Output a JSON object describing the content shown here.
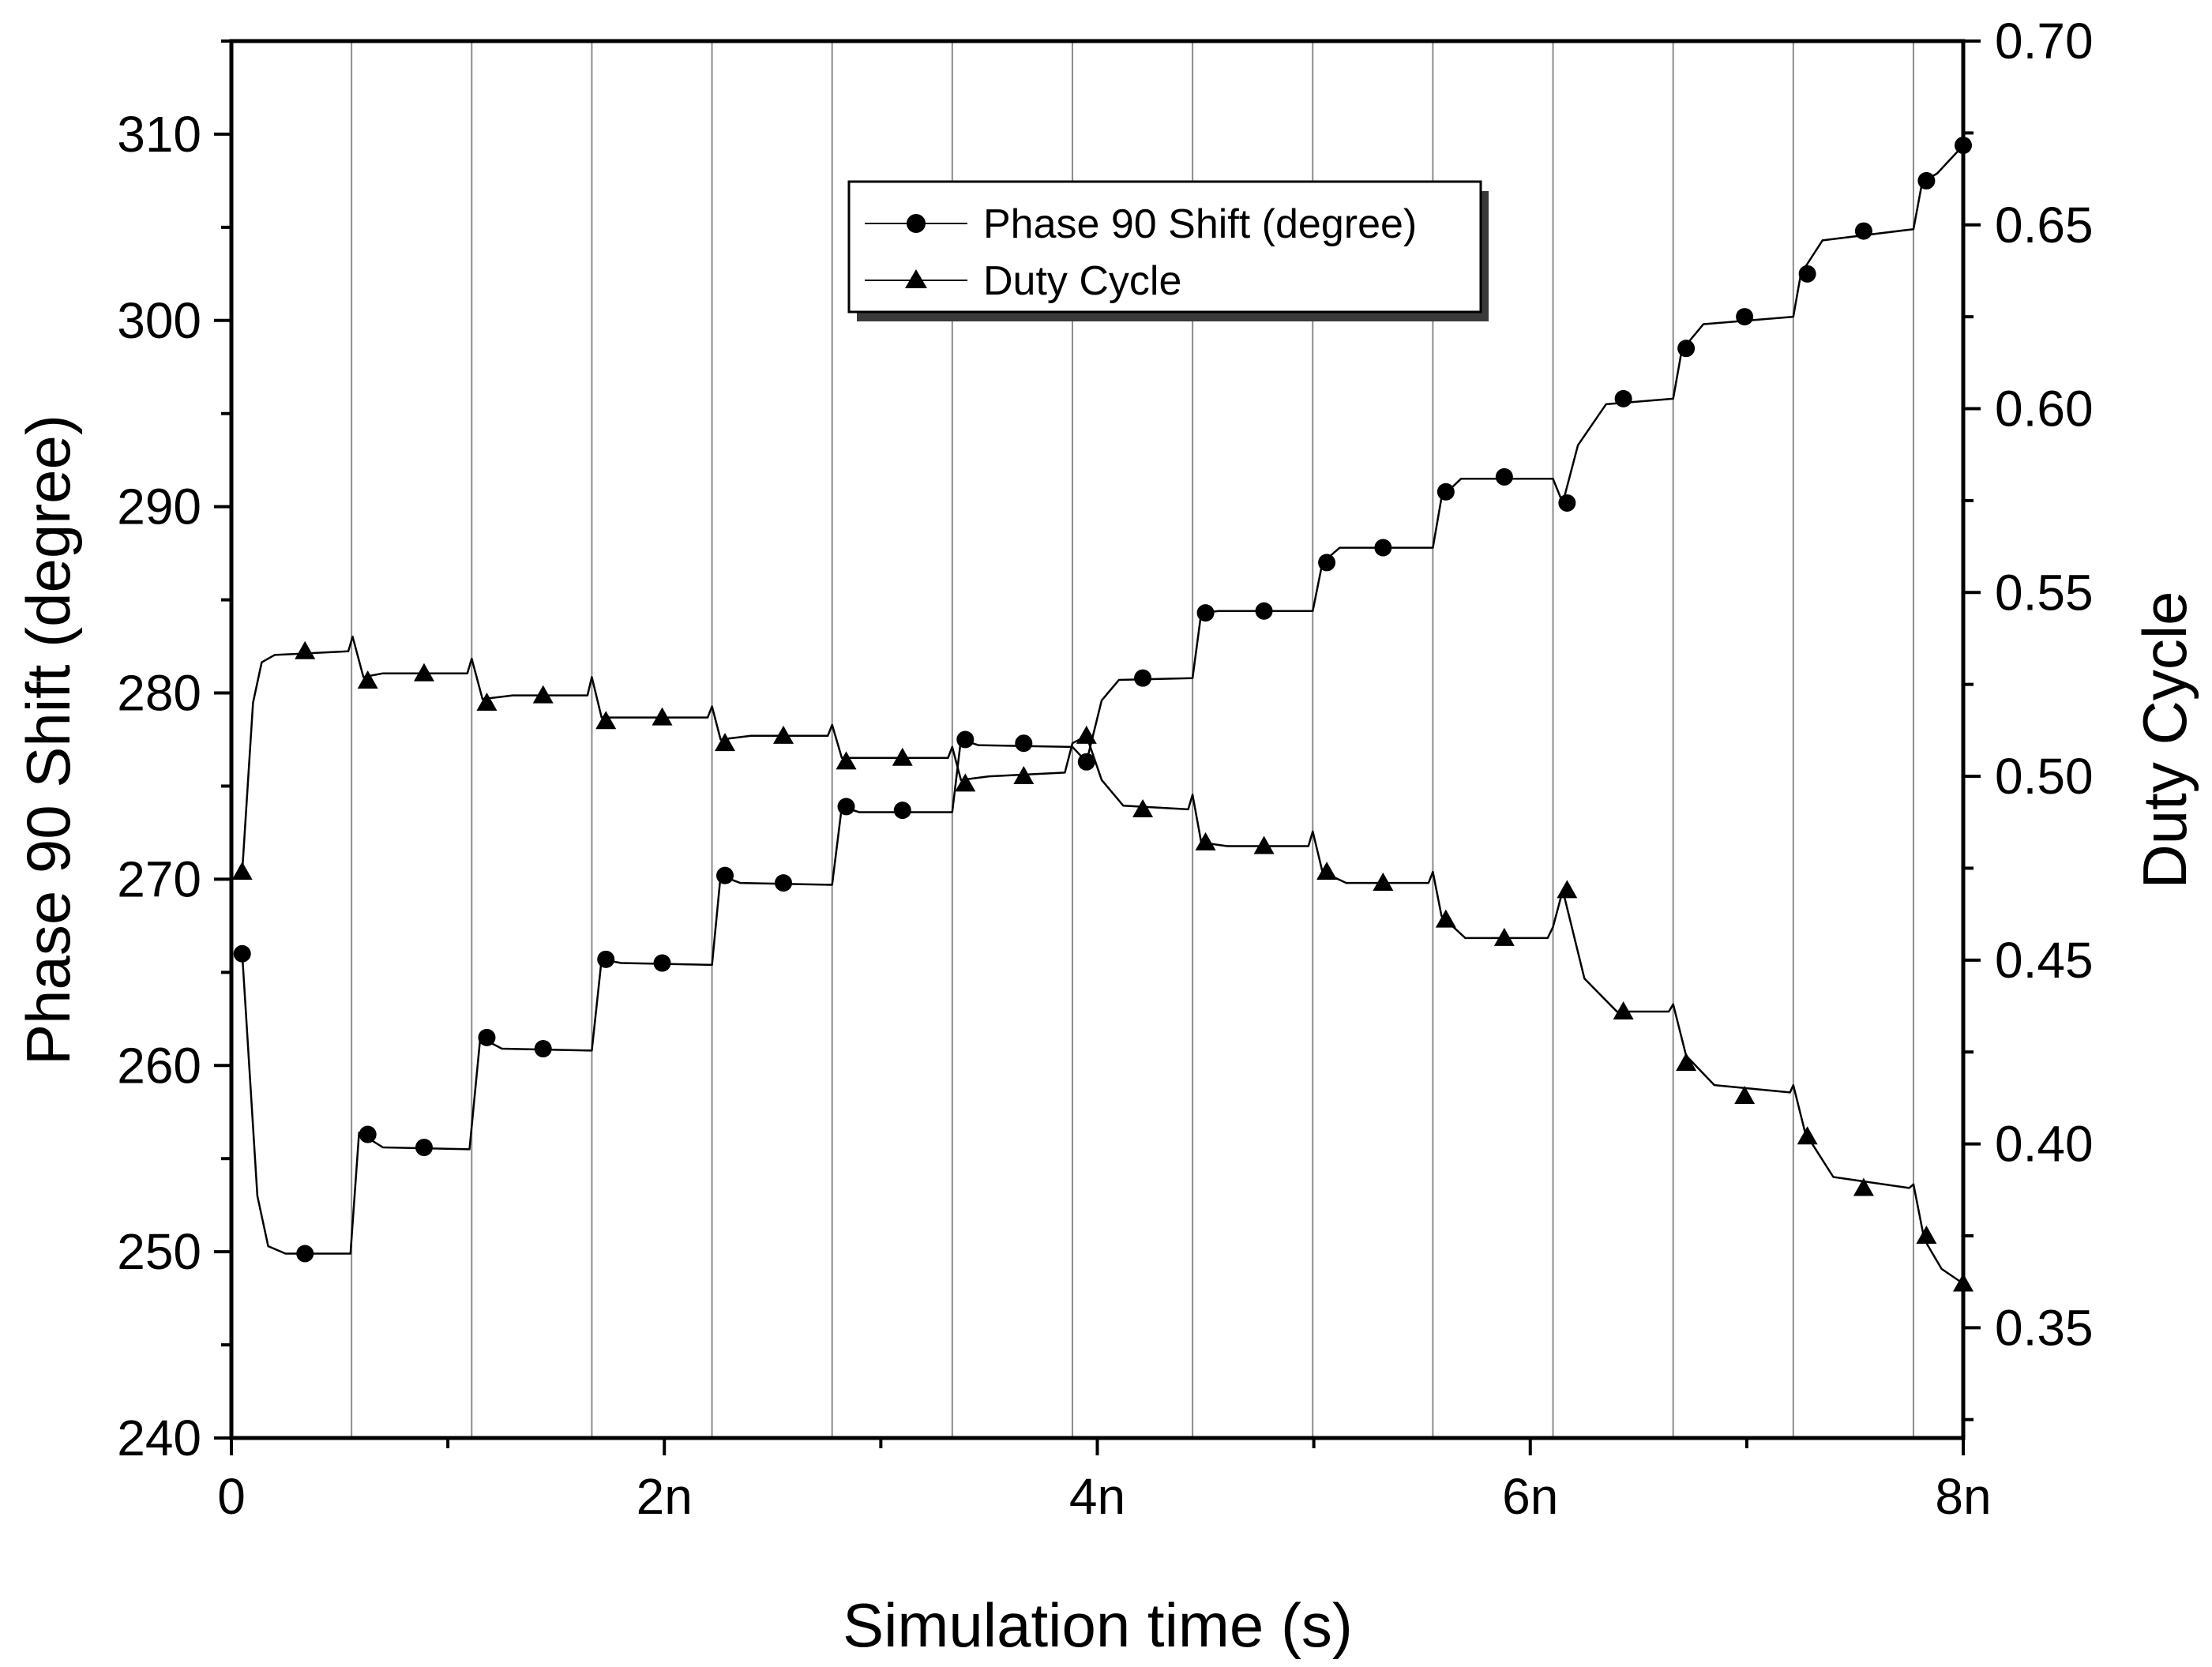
{
  "chart_data": {
    "type": "line",
    "xlabel": "Simulation time (s)",
    "ylabel_left": "Phase 90 Shift (degree)",
    "ylabel_right": "Duty Cycle",
    "xlim": [
      0,
      8e-09
    ],
    "ylim_left": [
      240,
      315
    ],
    "ylim_right": [
      0.32,
      0.7
    ],
    "x_ticks": [
      {
        "value": 0,
        "label": "0"
      },
      {
        "value": 2e-09,
        "label": "2n"
      },
      {
        "value": 4e-09,
        "label": "4n"
      },
      {
        "value": 6e-09,
        "label": "6n"
      },
      {
        "value": 8e-09,
        "label": "8n"
      }
    ],
    "y_left_ticks": [
      240,
      250,
      260,
      270,
      280,
      290,
      300,
      310
    ],
    "y_right_ticks": [
      "0.35",
      "0.40",
      "0.45",
      "0.50",
      "0.55",
      "0.60",
      "0.65",
      "0.70"
    ],
    "grid": "vertical lines at sampling periods",
    "vgrid_x": [
      5.55e-10,
      1.11e-09,
      1.665e-09,
      2.22e-09,
      2.775e-09,
      3.33e-09,
      3.885e-09,
      4.44e-09,
      4.995e-09,
      5.55e-09,
      6.105e-09,
      6.66e-09,
      7.215e-09,
      7.77e-09
    ],
    "legend_position": "top-center",
    "series": [
      {
        "name": "Phase 90 Shift (degree)",
        "axis": "left",
        "marker": "circle",
        "line": [
          [
            5e-11,
            266.0
          ],
          [
            1.2e-10,
            253.0
          ],
          [
            1.7e-10,
            250.3
          ],
          [
            2.5e-10,
            249.9
          ],
          [
            5.5e-10,
            249.9
          ],
          [
            5.9e-10,
            256.4
          ],
          [
            7e-10,
            255.6
          ],
          [
            1.1e-09,
            255.5
          ],
          [
            1.15e-09,
            261.5
          ],
          [
            1.25e-09,
            260.9
          ],
          [
            1.665e-09,
            260.8
          ],
          [
            1.71e-09,
            265.7
          ],
          [
            1.8e-09,
            265.5
          ],
          [
            2.22e-09,
            265.4
          ],
          [
            2.26e-09,
            270.2
          ],
          [
            2.35e-09,
            269.8
          ],
          [
            2.775e-09,
            269.7
          ],
          [
            2.82e-09,
            273.9
          ],
          [
            2.9e-09,
            273.6
          ],
          [
            3.33e-09,
            273.6
          ],
          [
            3.37e-09,
            277.5
          ],
          [
            3.45e-09,
            277.2
          ],
          [
            3.885e-09,
            277.1
          ],
          [
            3.95e-09,
            276.3
          ],
          [
            4.02e-09,
            279.6
          ],
          [
            4.1e-09,
            280.7
          ],
          [
            4.44e-09,
            280.8
          ],
          [
            4.48e-09,
            284.3
          ],
          [
            4.56e-09,
            284.4
          ],
          [
            4.995e-09,
            284.4
          ],
          [
            5.04e-09,
            287.0
          ],
          [
            5.12e-09,
            287.8
          ],
          [
            5.55e-09,
            287.8
          ],
          [
            5.59e-09,
            290.5
          ],
          [
            5.68e-09,
            291.5
          ],
          [
            6.105e-09,
            291.5
          ],
          [
            6.15e-09,
            290.2
          ],
          [
            6.22e-09,
            293.3
          ],
          [
            6.35e-09,
            295.5
          ],
          [
            6.66e-09,
            295.8
          ],
          [
            6.7e-09,
            298.4
          ],
          [
            6.8e-09,
            299.8
          ],
          [
            7.215e-09,
            300.2
          ],
          [
            7.25e-09,
            302.5
          ],
          [
            7.35e-09,
            304.3
          ],
          [
            7.77e-09,
            304.9
          ],
          [
            7.81e-09,
            307.4
          ],
          [
            7.88e-09,
            307.9
          ],
          [
            8e-09,
            309.4
          ]
        ],
        "markers": [
          [
            5e-11,
            266.0
          ],
          [
            3.4e-10,
            249.9
          ],
          [
            6.3e-10,
            256.3
          ],
          [
            8.9e-10,
            255.6
          ],
          [
            1.18e-09,
            261.5
          ],
          [
            1.44e-09,
            260.9
          ],
          [
            1.73e-09,
            265.7
          ],
          [
            1.99e-09,
            265.5
          ],
          [
            2.28e-09,
            270.2
          ],
          [
            2.55e-09,
            269.8
          ],
          [
            2.84e-09,
            273.9
          ],
          [
            3.1e-09,
            273.7
          ],
          [
            3.39e-09,
            277.5
          ],
          [
            3.66e-09,
            277.3
          ],
          [
            3.95e-09,
            276.3
          ],
          [
            4.21e-09,
            280.8
          ],
          [
            4.5e-09,
            284.3
          ],
          [
            4.77e-09,
            284.4
          ],
          [
            5.06e-09,
            287.0
          ],
          [
            5.32e-09,
            287.8
          ],
          [
            5.61e-09,
            290.8
          ],
          [
            5.88e-09,
            291.6
          ],
          [
            6.17e-09,
            290.2
          ],
          [
            6.43e-09,
            295.8
          ],
          [
            6.72e-09,
            298.5
          ],
          [
            6.99e-09,
            300.2
          ],
          [
            7.28e-09,
            302.5
          ],
          [
            7.54e-09,
            304.8
          ],
          [
            7.83e-09,
            307.5
          ],
          [
            8e-09,
            309.4
          ]
        ]
      },
      {
        "name": "Duty Cycle",
        "axis": "right",
        "marker": "triangle",
        "line": [
          [
            5e-11,
            0.474
          ],
          [
            1e-10,
            0.52
          ],
          [
            1.4e-10,
            0.531
          ],
          [
            2e-10,
            0.533
          ],
          [
            5.4e-10,
            0.534
          ],
          [
            5.6e-10,
            0.538
          ],
          [
            6.1e-10,
            0.527
          ],
          [
            7e-10,
            0.528
          ],
          [
            1.09e-09,
            0.528
          ],
          [
            1.11e-09,
            0.532
          ],
          [
            1.16e-09,
            0.521
          ],
          [
            1.3e-09,
            0.522
          ],
          [
            1.645e-09,
            0.522
          ],
          [
            1.665e-09,
            0.527
          ],
          [
            1.71e-09,
            0.516
          ],
          [
            1.85e-09,
            0.516
          ],
          [
            2.2e-09,
            0.516
          ],
          [
            2.22e-09,
            0.519
          ],
          [
            2.26e-09,
            0.51
          ],
          [
            2.4e-09,
            0.511
          ],
          [
            2.755e-09,
            0.511
          ],
          [
            2.775e-09,
            0.514
          ],
          [
            2.82e-09,
            0.505
          ],
          [
            2.95e-09,
            0.505
          ],
          [
            3.31e-09,
            0.505
          ],
          [
            3.33e-09,
            0.508
          ],
          [
            3.37e-09,
            0.499
          ],
          [
            3.5e-09,
            0.5
          ],
          [
            3.85e-09,
            0.501
          ],
          [
            3.885e-09,
            0.509
          ],
          [
            3.95e-09,
            0.511
          ],
          [
            4.02e-09,
            0.499
          ],
          [
            4.12e-09,
            0.492
          ],
          [
            4.42e-09,
            0.491
          ],
          [
            4.44e-09,
            0.495
          ],
          [
            4.48e-09,
            0.482
          ],
          [
            4.6e-09,
            0.481
          ],
          [
            4.975e-09,
            0.481
          ],
          [
            4.995e-09,
            0.485
          ],
          [
            5.04e-09,
            0.474
          ],
          [
            5.15e-09,
            0.471
          ],
          [
            5.53e-09,
            0.471
          ],
          [
            5.55e-09,
            0.474
          ],
          [
            5.59e-09,
            0.462
          ],
          [
            5.7e-09,
            0.456
          ],
          [
            6.08e-09,
            0.456
          ],
          [
            6.105e-09,
            0.459
          ],
          [
            6.15e-09,
            0.469
          ],
          [
            6.25e-09,
            0.445
          ],
          [
            6.4e-09,
            0.436
          ],
          [
            6.64e-09,
            0.436
          ],
          [
            6.66e-09,
            0.438
          ],
          [
            6.72e-09,
            0.424
          ],
          [
            6.85e-09,
            0.416
          ],
          [
            7.2e-09,
            0.414
          ],
          [
            7.215e-09,
            0.416
          ],
          [
            7.27e-09,
            0.403
          ],
          [
            7.4e-09,
            0.391
          ],
          [
            7.75e-09,
            0.388
          ],
          [
            7.77e-09,
            0.389
          ],
          [
            7.82e-09,
            0.374
          ],
          [
            7.9e-09,
            0.366
          ],
          [
            8e-09,
            0.362
          ]
        ],
        "markers": [
          [
            5e-11,
            0.474
          ],
          [
            3.4e-10,
            0.534
          ],
          [
            6.3e-10,
            0.526
          ],
          [
            8.9e-10,
            0.528
          ],
          [
            1.18e-09,
            0.52
          ],
          [
            1.44e-09,
            0.522
          ],
          [
            1.73e-09,
            0.515
          ],
          [
            1.99e-09,
            0.516
          ],
          [
            2.28e-09,
            0.509
          ],
          [
            2.55e-09,
            0.511
          ],
          [
            2.84e-09,
            0.504
          ],
          [
            3.1e-09,
            0.505
          ],
          [
            3.39e-09,
            0.498
          ],
          [
            3.66e-09,
            0.5
          ],
          [
            3.95e-09,
            0.511
          ],
          [
            4.21e-09,
            0.491
          ],
          [
            4.5e-09,
            0.482
          ],
          [
            4.77e-09,
            0.481
          ],
          [
            5.06e-09,
            0.474
          ],
          [
            5.32e-09,
            0.471
          ],
          [
            5.61e-09,
            0.461
          ],
          [
            5.88e-09,
            0.456
          ],
          [
            6.17e-09,
            0.469
          ],
          [
            6.43e-09,
            0.436
          ],
          [
            6.72e-09,
            0.422
          ],
          [
            6.99e-09,
            0.413
          ],
          [
            7.28e-09,
            0.402
          ],
          [
            7.54e-09,
            0.388
          ],
          [
            7.83e-09,
            0.375
          ],
          [
            8e-09,
            0.362
          ]
        ]
      }
    ]
  }
}
